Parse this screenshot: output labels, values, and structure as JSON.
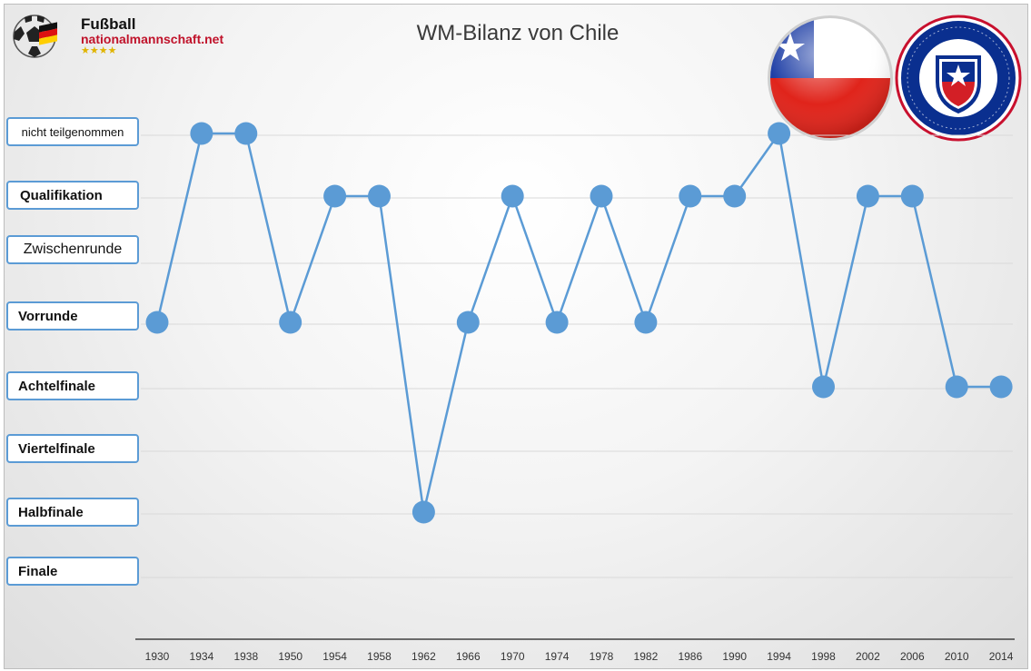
{
  "logo": {
    "name": "Fußball",
    "site": "nationalmannschaft.net",
    "stars": "★★★★"
  },
  "chart_data": {
    "type": "line",
    "title": "WM-Bilanz von Chile",
    "categories": [
      "1930",
      "1934",
      "1938",
      "1950",
      "1954",
      "1958",
      "1962",
      "1966",
      "1970",
      "1974",
      "1978",
      "1982",
      "1986",
      "1990",
      "1994",
      "1998",
      "2002",
      "2006",
      "2010",
      "2014"
    ],
    "y_categories": [
      "nicht teilgenommen",
      "Qualifikation",
      "Zwischenrunde",
      "Vorrunde",
      "Achtelfinale",
      "Viertelfinale",
      "Halbfinale",
      "Finale"
    ],
    "series": [
      {
        "values": [
          "Vorrunde",
          "nicht teilgenommen",
          "nicht teilgenommen",
          "Vorrunde",
          "Qualifikation",
          "Qualifikation",
          "Halbfinale",
          "Vorrunde",
          "Qualifikation",
          "Vorrunde",
          "Qualifikation",
          "Vorrunde",
          "Qualifikation",
          "Qualifikation",
          "nicht teilgenommen",
          "Achtelfinale",
          "Qualifikation",
          "Qualifikation",
          "Achtelfinale",
          "Achtelfinale"
        ],
        "color": "#5b9bd5"
      }
    ],
    "xlabel": "",
    "ylabel": "",
    "grid": true,
    "legend": "none"
  },
  "colors": {
    "line": "#5b9bd5",
    "box_border": "#5b9bd5",
    "gridline": "#d9d9d9",
    "axis": "#404040"
  }
}
